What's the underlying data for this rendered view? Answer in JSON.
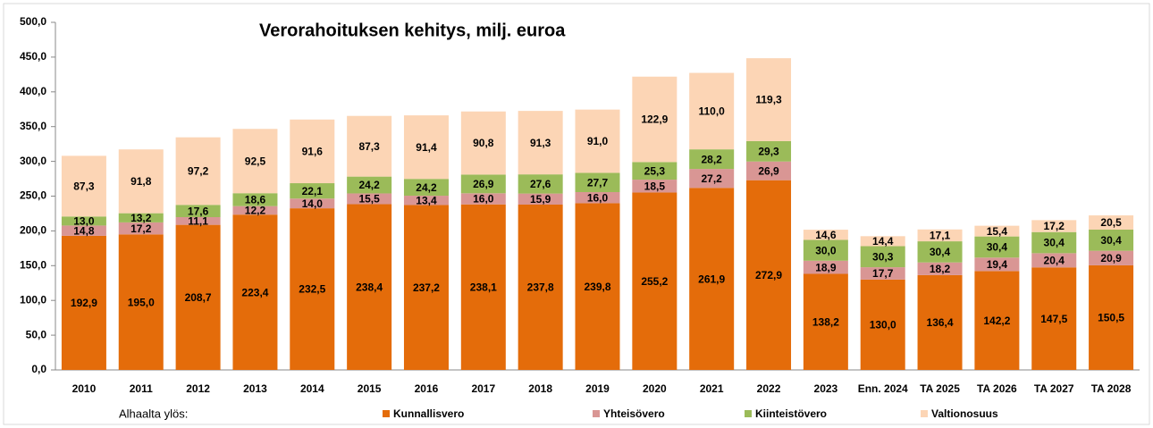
{
  "chart_data": {
    "type": "bar",
    "stacked": true,
    "title": "Verorahoituksen kehitys, milj. euroa",
    "legend_prefix": "Alhaalta ylös:",
    "categories": [
      "2010",
      "2011",
      "2012",
      "2013",
      "2014",
      "2015",
      "2016",
      "2017",
      "2018",
      "2019",
      "2020",
      "2021",
      "2022",
      "2023",
      "Enn. 2024",
      "TA 2025",
      "TA 2026",
      "TA 2027",
      "TA 2028"
    ],
    "series": [
      {
        "name": "Kunnallisvero",
        "color": "#e46c0a",
        "values": [
          192.9,
          195.0,
          208.7,
          223.4,
          232.5,
          238.4,
          237.2,
          238.1,
          237.8,
          239.8,
          255.2,
          261.9,
          272.9,
          138.2,
          130.0,
          136.4,
          142.2,
          147.5,
          150.5
        ],
        "value_labels": [
          "192,9",
          "195,0",
          "208,7",
          "223,4",
          "232,5",
          "238,4",
          "237,2",
          "238,1",
          "237,8",
          "239,8",
          "255,2",
          "261,9",
          "272,9",
          "138,2",
          "130,0",
          "136,4",
          "142,2",
          "147,5",
          "150,5"
        ]
      },
      {
        "name": "Yhteisövero",
        "color": "#d99694",
        "values": [
          14.8,
          17.2,
          11.1,
          12.2,
          14.0,
          15.5,
          13.4,
          16.0,
          15.9,
          16.0,
          18.5,
          27.2,
          26.9,
          18.9,
          17.7,
          18.2,
          19.4,
          20.4,
          20.9
        ],
        "value_labels": [
          "14,8",
          "17,2",
          "11,1",
          "12,2",
          "14,0",
          "15,5",
          "13,4",
          "16,0",
          "15,9",
          "16,0",
          "18,5",
          "27,2",
          "26,9",
          "18,9",
          "17,7",
          "18,2",
          "19,4",
          "20,4",
          "20,9"
        ]
      },
      {
        "name": "Kiinteistövero",
        "color": "#9bbb59",
        "values": [
          13.0,
          13.2,
          17.6,
          18.6,
          22.1,
          24.2,
          24.2,
          26.9,
          27.6,
          27.7,
          25.3,
          28.2,
          29.3,
          30.0,
          30.3,
          30.4,
          30.4,
          30.4,
          30.4
        ],
        "value_labels": [
          "13,0",
          "13,2",
          "17,6",
          "18,6",
          "22,1",
          "24,2",
          "24,2",
          "26,9",
          "27,6",
          "27,7",
          "25,3",
          "28,2",
          "29,3",
          "30,0",
          "30,3",
          "30,4",
          "30,4",
          "30,4",
          "30,4"
        ]
      },
      {
        "name": "Valtionosuus",
        "color": "#fcd5b5",
        "values": [
          87.3,
          91.8,
          97.2,
          92.5,
          91.6,
          87.3,
          91.4,
          90.8,
          91.3,
          91.0,
          122.9,
          110.0,
          119.3,
          14.6,
          14.4,
          17.1,
          15.4,
          17.2,
          20.5
        ],
        "value_labels": [
          "87,3",
          "91,8",
          "97,2",
          "92,5",
          "91,6",
          "87,3",
          "91,4",
          "90,8",
          "91,3",
          "91,0",
          "122,9",
          "110,0",
          "119,3",
          "14,6",
          "14,4",
          "17,1",
          "15,4",
          "17,2",
          "20,5"
        ]
      }
    ],
    "ylim": [
      0,
      500
    ],
    "yticks": [
      {
        "value": 0,
        "label": "0,0"
      },
      {
        "value": 50,
        "label": "50,0"
      },
      {
        "value": 100,
        "label": "100,0"
      },
      {
        "value": 150,
        "label": "150,0"
      },
      {
        "value": 200,
        "label": "200,0"
      },
      {
        "value": 250,
        "label": "250,0"
      },
      {
        "value": 300,
        "label": "300,0"
      },
      {
        "value": 350,
        "label": "350,0"
      },
      {
        "value": 400,
        "label": "400,0"
      },
      {
        "value": 450,
        "label": "450,0"
      },
      {
        "value": 500,
        "label": "500,0"
      }
    ]
  }
}
